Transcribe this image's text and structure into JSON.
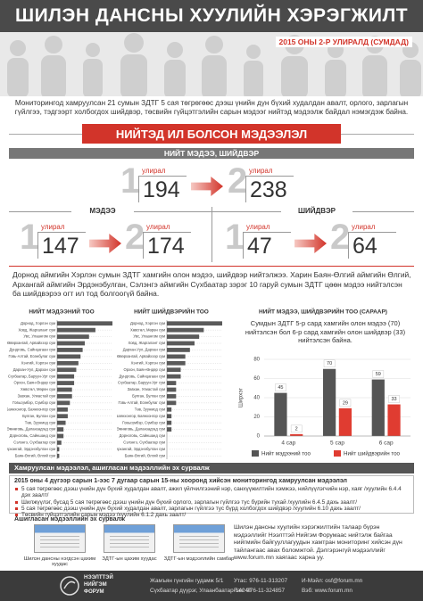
{
  "header": {
    "title": "ШИЛЭН ДАНСНЫ ХУУЛИЙН ХЭРЭГЖИЛТ",
    "subtitle": "2015 ОНЫ 2-Р УЛИРАЛД (СУМДАД)"
  },
  "intro": "Мониторингод хамруулсан 21 сумын ЗДТГ 5 сая төгрөгөөс дээш үнийн дүн бүхий худалдан авалт, орлого, зарлагын гүйлгээ, тэдгээрт холбогдох шийдвэр, төсвийн гүйцэтгэлийн сарын мэдээг нийтэд мэдээлж байдал нэмэгдэж байна.",
  "banner": "НИЙТЭД ИЛ БОЛСОН МЭДЭЭЛЭЛ",
  "stats": {
    "heading": "НИЙТ МЭДЭЭ, ШИЙДВЭР",
    "quarter_word": "улирал",
    "q1": "1",
    "q2": "2",
    "total": [
      194,
      238
    ],
    "news": {
      "label": "МЭДЭЭ",
      "values": [
        147,
        174
      ]
    },
    "decisions": {
      "label": "ШИЙДВЭР",
      "values": [
        47,
        64
      ]
    }
  },
  "finding": "Дорнод аймгийн Хэрлэн сумын ЗДТГ хамгийн олон мэдээ, шийдвэр нийтэлжээ. Харин Баян-Өлгий аймгийн Өлгий, Архангай аймгийн Эрдэнэбулган, Сэлэнгэ аймгийн Сүхбаатар зэрэг 10 гаруй сумын ЗДТГ цөөн мэдээ нийтэлсэн ба шийдвэрээ огт ил тод болгоогүй байна.",
  "chart_data": [
    {
      "type": "barh",
      "title": "НИЙТ МЭДЭЭНИЙ ТОО",
      "color": "#5a5a5a",
      "categories": [
        "Дорнод, Хэрлэн сум",
        "Ховд, Жаргалант сум",
        "Увс, Улаангом сум",
        "Өвөрхангай, Арвайхээр сум",
        "Дундговь, Сайнцагаан сум",
        "Говь-Алтай, Есөнбулаг сум",
        "Хэнтий, Хэрлэн сум",
        "Дархан-Уул, Дархан сум",
        "Сүхбаатар, Баруун-Урт сум",
        "Орхон, Баян-Өндөр сум",
        "Хөвсгөл, Мөрөн сум",
        "Завхан, Улиастай сум",
        "Говьсүмбэр, Сүмбэр сум",
        "Баянхонгор, Баянхонгор сум",
        "Булган, Булган сум",
        "Төв, Зуунмод сум",
        "Өмнөговь, Даланзадгад сум",
        "Дорноговь, Сайншанд сум",
        "Сэлэнгэ, Сүхбаатар сум",
        "Архангай, Эрдэнэбулган сум",
        "Баян-Өлгий, Өлгий сум"
      ],
      "values": [
        26,
        18,
        15,
        13,
        12,
        11,
        10,
        9,
        8,
        8,
        7,
        7,
        6,
        5,
        5,
        4,
        3,
        3,
        2,
        1,
        1
      ]
    },
    {
      "type": "barh",
      "title": "НИЙТ ШИЙДВЭРИЙН ТОО",
      "color": "#5a5a5a",
      "categories": [
        "Дорнод, Хэрлэн сум",
        "Хөвсгөл, Мөрөн сум",
        "Увс, Улаангом сум",
        "Ховд, Жаргалант сум",
        "Дархан-Уул, Дархан сум",
        "Өвөрхангай, Арвайхээр сум",
        "Хэнтий, Хэрлэн сум",
        "Орхон, Баян-Өндөр сум",
        "Дундговь, Сайнцагаан сум",
        "Сүхбаатар, Баруун-Урт сум",
        "Завхан, Улиастай сум",
        "Булган, Булган сум",
        "Говь-Алтай, Есөнбулаг сум",
        "Төв, Зуунмод сум",
        "Баянхонгор, Баянхонгор сум",
        "Говьсүмбэр, Сүмбэр сум",
        "Өмнөговь, Даланзадгад сум",
        "Дорноговь, Сайншанд сум",
        "Сэлэнгэ, Сүхбаатар сум",
        "Архангай, Эрдэнэбулган сум",
        "Баян-Өлгий, Өлгий сум"
      ],
      "values": [
        12,
        8,
        7,
        6,
        5,
        4,
        4,
        3,
        3,
        2,
        2,
        2,
        2,
        1,
        1,
        1,
        1,
        0,
        0,
        0,
        0
      ]
    },
    {
      "type": "bar",
      "title": "НИЙТ МЭДЭЭ, ШИЙДВЭРИЙН ТОО (САРААР)",
      "annotation": "Сумдын ЗДТГ 5-р сард хамгийн олон мэдээ (70) нийтэлсэн бол 6-р сард хамгийн олон шийдвэр (33) нийтэлсэн байна.",
      "y_label": "Ширхэг",
      "categories": [
        "4 сар",
        "5 сар",
        "6 сар"
      ],
      "series": [
        {
          "name": "Нийт мэдээний тоо",
          "color": "#555555",
          "values": [
            45,
            70,
            59
          ]
        },
        {
          "name": "Нийт шийдвэрийн тоо",
          "color": "#e03c31",
          "values": [
            2,
            29,
            33
          ]
        }
      ],
      "ylim": [
        0,
        80
      ],
      "yticks": [
        0,
        20,
        40,
        60,
        80
      ],
      "grid": true,
      "legend": "bottom"
    }
  ],
  "coverage": {
    "heading": "Хамруулсан мэдээлэл, ашигласан мэдээллийн эх сурвалж",
    "period": "2015 оны 4 дүгээр сарын 1-ээс 7 дугаар сарын 15-ны хооронд хийсэн мониторингод хамруулсан мэдээлэл",
    "items": [
      "5 сая төгрөгөөс дээш үнийн дүн бүхий худалдан авалт, ажил үйлчилгээний нэр, санхүүжилтийн хэмжээ, нийлүүлэгчийн нэр, хаяг /хуулийн 6.4.4 дэх заалт/",
      "Шилжүүлэг, бусад 5 сая төгрөгөөс дээш үнийн дүн бүхий орлого, зарлагын гүйлгээ тус бүрийн тухай /хуулийн 6.4.5 дахь заалт/",
      "5 сая төгрөгөөс дээш үнийн дүн бүхий худалдан авалт, зарлагын гүйлгээ тус бүрд холбогдох шийдвэр /хуулийн 6.10 дахь заалт/",
      "Төсвийн гүйцэтгэлийн сарын мэдээ /хуулийн 6.1.2 дахь заалт/"
    ]
  },
  "sources": {
    "heading": "Ашигласан мэдээллийн эх сурвалж",
    "items": [
      "Шилэн дансны нэгдсэн цахим хуудас",
      "ЗДТГ-ын цахим хуудас",
      "ЗДТГ-ын мэдээллийн самбар"
    ]
  },
  "more_info": "Шилэн дансны хуулийн хэрэгжилтийн талаар бүрэн мэдээллийг Нээлттэй Нийгэм Форумаас нийтэлж байгаа нийгмийн байгууллагуудын хамтран мониторинг хийсэн дүн тайлангаас авах боломжтой. Дэлгэрэнгүй мэдээллийг www.forum.mn хаягаас харна уу.",
  "footer": {
    "org": [
      "НЭЭЛТТЭЙ",
      "НИЙГЭМ",
      "ФОРУМ"
    ],
    "address": [
      "Жамъян гүнгийн гудамж 5/1",
      "Сүхбаатар дүүрэг, Улаанбаатар-14240"
    ],
    "phone": [
      "Утас: 976-11-313207",
      "Fax: 976-11-324857"
    ],
    "web": [
      "И-Мэйл: osf@forum.mn",
      "Вэб: www.forum.mn"
    ]
  }
}
